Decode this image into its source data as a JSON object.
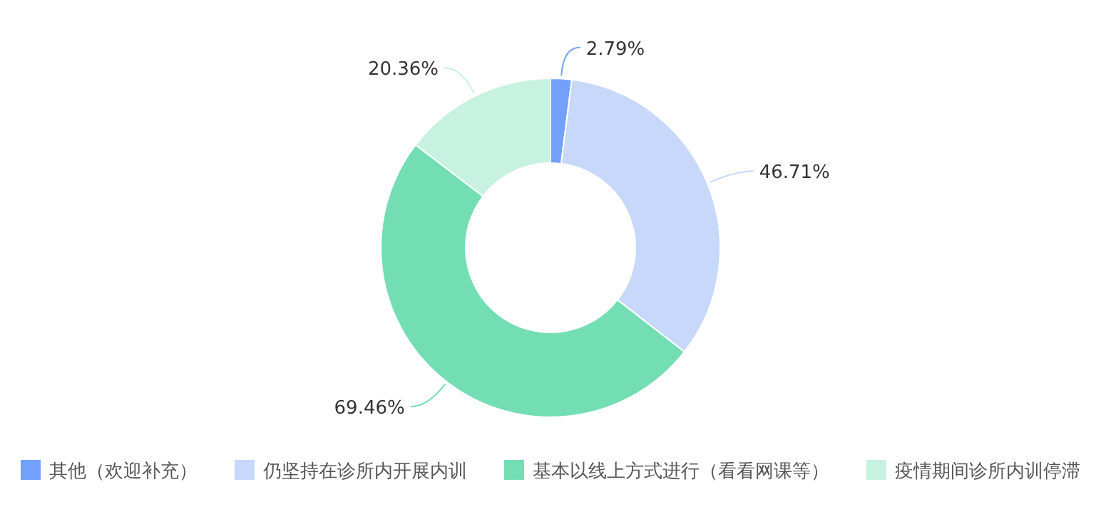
{
  "chart_data": {
    "type": "donut",
    "categories": [
      "其他（欢迎补充）",
      "仍坚持在诊所内开展内训",
      "基本以线上方式进行（看看网课等）",
      "疫情期间诊所内训停滞"
    ],
    "values": [
      2.79,
      46.71,
      69.46,
      20.36
    ],
    "value_labels": [
      "2.79%",
      "46.71%",
      "69.46%",
      "20.36%"
    ],
    "colors": [
      "#73a0fa",
      "#c7d8fb",
      "#73deb4",
      "#c7f1e1"
    ],
    "legend": "bottom"
  }
}
